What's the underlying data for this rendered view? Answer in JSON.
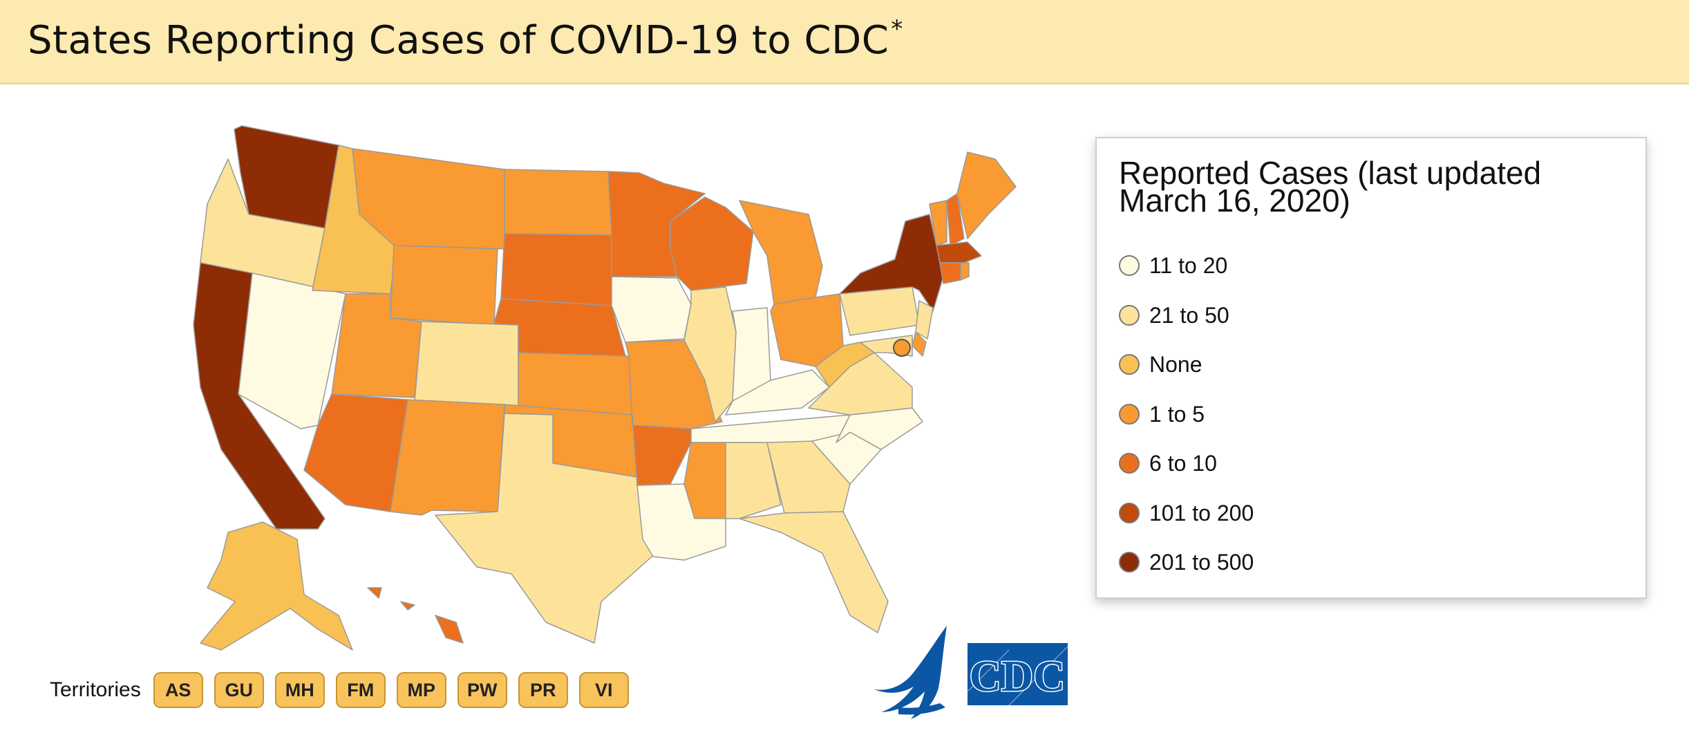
{
  "header": {
    "title": "States Reporting Cases of COVID-19 to CDC",
    "asterisk": "*"
  },
  "legend": {
    "title": "Reported Cases (last updated March 16, 2020)",
    "items": [
      {
        "label": "11 to 20",
        "color": "#fffbe3"
      },
      {
        "label": "21 to 50",
        "color": "#fde39a"
      },
      {
        "label": "None",
        "color": "#f9c153"
      },
      {
        "label": "1 to 5",
        "color": "#f99a33"
      },
      {
        "label": "6 to 10",
        "color": "#ec6f1e"
      },
      {
        "label": "101 to 200",
        "color": "#c24a0c"
      },
      {
        "label": "201 to 500",
        "color": "#8e2c05"
      }
    ]
  },
  "territories": {
    "label": "Territories",
    "items": [
      "AS",
      "GU",
      "MH",
      "FM",
      "MP",
      "PW",
      "PR",
      "VI"
    ]
  },
  "states": [
    {
      "name": "WA",
      "color": "#8e2c05"
    },
    {
      "name": "OR",
      "color": "#fde39a"
    },
    {
      "name": "CA",
      "color": "#8e2c05"
    },
    {
      "name": "NV",
      "color": "#fffbe3"
    },
    {
      "name": "ID",
      "color": "#f9c153"
    },
    {
      "name": "MT",
      "color": "#f99a33"
    },
    {
      "name": "WY",
      "color": "#f99a33"
    },
    {
      "name": "UT",
      "color": "#f99a33"
    },
    {
      "name": "AZ",
      "color": "#ec6f1e"
    },
    {
      "name": "CO",
      "color": "#fde39a"
    },
    {
      "name": "NM",
      "color": "#f99a33"
    },
    {
      "name": "ND",
      "color": "#f99a33"
    },
    {
      "name": "SD",
      "color": "#ec6f1e"
    },
    {
      "name": "NE",
      "color": "#ec6f1e"
    },
    {
      "name": "KS",
      "color": "#f99a33"
    },
    {
      "name": "OK",
      "color": "#f99a33"
    },
    {
      "name": "TX",
      "color": "#fde39a"
    },
    {
      "name": "MN",
      "color": "#ec6f1e"
    },
    {
      "name": "IA",
      "color": "#fffbe3"
    },
    {
      "name": "MO",
      "color": "#f99a33"
    },
    {
      "name": "AR",
      "color": "#ec6f1e"
    },
    {
      "name": "LA",
      "color": "#fffbe3"
    },
    {
      "name": "WI",
      "color": "#ec6f1e"
    },
    {
      "name": "IL",
      "color": "#fde39a"
    },
    {
      "name": "MI",
      "color": "#f99a33"
    },
    {
      "name": "IN",
      "color": "#fffbe3"
    },
    {
      "name": "OH",
      "color": "#f99a33"
    },
    {
      "name": "KY",
      "color": "#fffbe3"
    },
    {
      "name": "TN",
      "color": "#fffbe3"
    },
    {
      "name": "MS",
      "color": "#f99a33"
    },
    {
      "name": "AL",
      "color": "#fde39a"
    },
    {
      "name": "GA",
      "color": "#fde39a"
    },
    {
      "name": "FL",
      "color": "#fde39a"
    },
    {
      "name": "SC",
      "color": "#fffbe3"
    },
    {
      "name": "NC",
      "color": "#fffbe3"
    },
    {
      "name": "VA",
      "color": "#fde39a"
    },
    {
      "name": "WV",
      "color": "#f9c153"
    },
    {
      "name": "PA",
      "color": "#fde39a"
    },
    {
      "name": "NY",
      "color": "#8e2c05"
    },
    {
      "name": "VT",
      "color": "#f99a33"
    },
    {
      "name": "NH",
      "color": "#ec6f1e"
    },
    {
      "name": "ME",
      "color": "#f99a33"
    },
    {
      "name": "MA",
      "color": "#c24a0c"
    },
    {
      "name": "CT",
      "color": "#ec6f1e"
    },
    {
      "name": "RI",
      "color": "#f99a33"
    },
    {
      "name": "NJ",
      "color": "#fde39a"
    },
    {
      "name": "DE",
      "color": "#f99a33"
    },
    {
      "name": "MD",
      "color": "#fde39a"
    },
    {
      "name": "DC",
      "color": "#f99a33"
    },
    {
      "name": "AK",
      "color": "#f9c153"
    },
    {
      "name": "HI",
      "color": "#ec6f1e"
    }
  ],
  "logos": {
    "hhs": "hhs-eagle-logo",
    "cdc_text": "CDC",
    "cdc_color": "#0b57a4"
  }
}
